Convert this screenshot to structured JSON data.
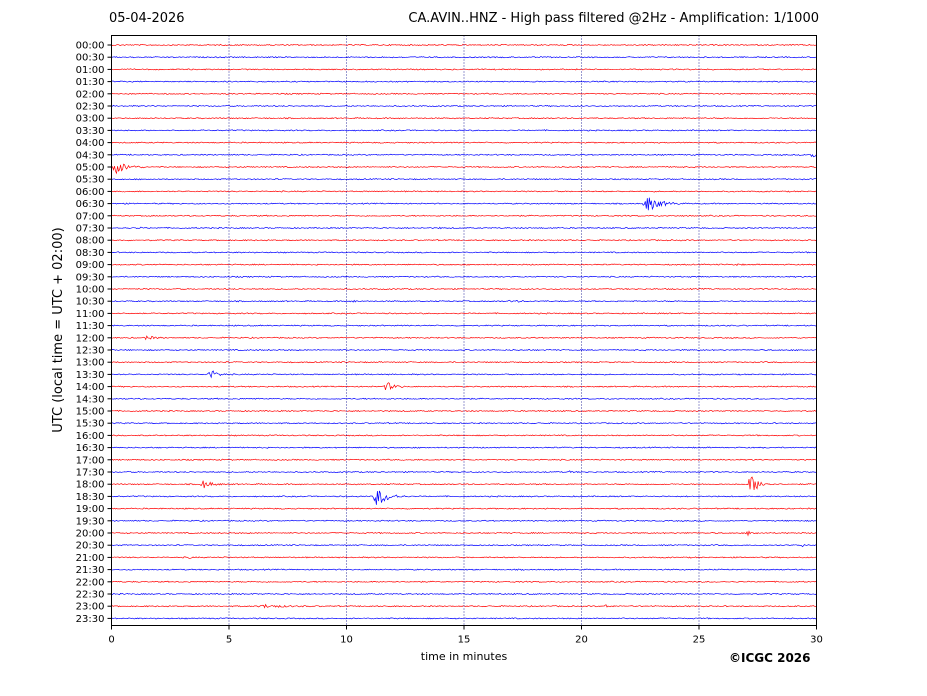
{
  "header": {
    "date": "05-04-2026",
    "title": "CA.AVIN..HNZ - High pass filtered @2Hz - Amplification: 1/1000"
  },
  "footer": {
    "credit": "©ICGC 2026"
  },
  "chart_data": {
    "type": "line",
    "title": "CA.AVIN..HNZ - High pass filtered @2Hz - Amplification: 1/1000",
    "xlabel": "time in minutes",
    "ylabel": "UTC (local time = UTC + 02:00)",
    "xlim": [
      0,
      30
    ],
    "x_ticks": [
      0,
      5,
      10,
      15,
      20,
      25,
      30
    ],
    "grid": "vertical dotted at every 5 minutes",
    "trace_colors": [
      "#ff0000",
      "#0000ff"
    ],
    "rows": [
      "00:00",
      "00:30",
      "01:00",
      "01:30",
      "02:00",
      "02:30",
      "03:00",
      "03:30",
      "04:00",
      "04:30",
      "05:00",
      "05:30",
      "06:00",
      "06:30",
      "07:00",
      "07:30",
      "08:00",
      "08:30",
      "09:00",
      "09:30",
      "10:00",
      "10:30",
      "11:00",
      "11:30",
      "12:00",
      "12:30",
      "13:00",
      "13:30",
      "14:00",
      "14:30",
      "15:00",
      "15:30",
      "16:00",
      "16:30",
      "17:00",
      "17:30",
      "18:00",
      "18:30",
      "19:00",
      "19:30",
      "20:00",
      "20:30",
      "21:00",
      "21:30",
      "22:00",
      "22:30",
      "23:00",
      "23:30"
    ],
    "events": [
      {
        "row": "04:30",
        "minute": 29.8,
        "amplitude": 0.7,
        "duration": 0.6
      },
      {
        "row": "05:00",
        "minute": 0.2,
        "amplitude": 1.1,
        "duration": 1.2
      },
      {
        "row": "06:30",
        "minute": 22.8,
        "amplitude": 1.3,
        "duration": 1.4
      },
      {
        "row": "07:30",
        "minute": 1.1,
        "amplitude": 0.2,
        "duration": 0.3
      },
      {
        "row": "07:30",
        "minute": 14.0,
        "amplitude": 0.15,
        "duration": 0.3
      },
      {
        "row": "09:00",
        "minute": 26.5,
        "amplitude": 0.2,
        "duration": 0.5
      },
      {
        "row": "10:30",
        "minute": 10.3,
        "amplitude": 0.2,
        "duration": 0.3
      },
      {
        "row": "10:30",
        "minute": 17.0,
        "amplitude": 0.15,
        "duration": 1.0
      },
      {
        "row": "12:00",
        "minute": 1.5,
        "amplitude": 0.35,
        "duration": 0.8
      },
      {
        "row": "13:30",
        "minute": 4.2,
        "amplitude": 0.8,
        "duration": 0.8
      },
      {
        "row": "13:30",
        "minute": 20.2,
        "amplitude": 0.2,
        "duration": 0.2
      },
      {
        "row": "14:00",
        "minute": 11.7,
        "amplitude": 0.8,
        "duration": 0.8
      },
      {
        "row": "17:00",
        "minute": 9.2,
        "amplitude": 0.12,
        "duration": 0.3
      },
      {
        "row": "17:30",
        "minute": 19.5,
        "amplitude": 0.15,
        "duration": 0.2
      },
      {
        "row": "18:00",
        "minute": 3.9,
        "amplitude": 0.7,
        "duration": 0.9
      },
      {
        "row": "18:00",
        "minute": 27.2,
        "amplitude": 1.6,
        "duration": 1.0
      },
      {
        "row": "18:30",
        "minute": 11.3,
        "amplitude": 1.7,
        "duration": 1.2
      },
      {
        "row": "20:00",
        "minute": 27.1,
        "amplitude": 0.35,
        "duration": 0.7
      },
      {
        "row": "20:30",
        "minute": 29.4,
        "amplitude": 0.2,
        "duration": 0.3
      },
      {
        "row": "21:00",
        "minute": 3.3,
        "amplitude": 0.15,
        "duration": 0.3
      },
      {
        "row": "23:00",
        "minute": 6.5,
        "amplitude": 0.25,
        "duration": 2.0
      },
      {
        "row": "23:00",
        "minute": 21.0,
        "amplitude": 0.3,
        "duration": 0.5
      }
    ]
  }
}
